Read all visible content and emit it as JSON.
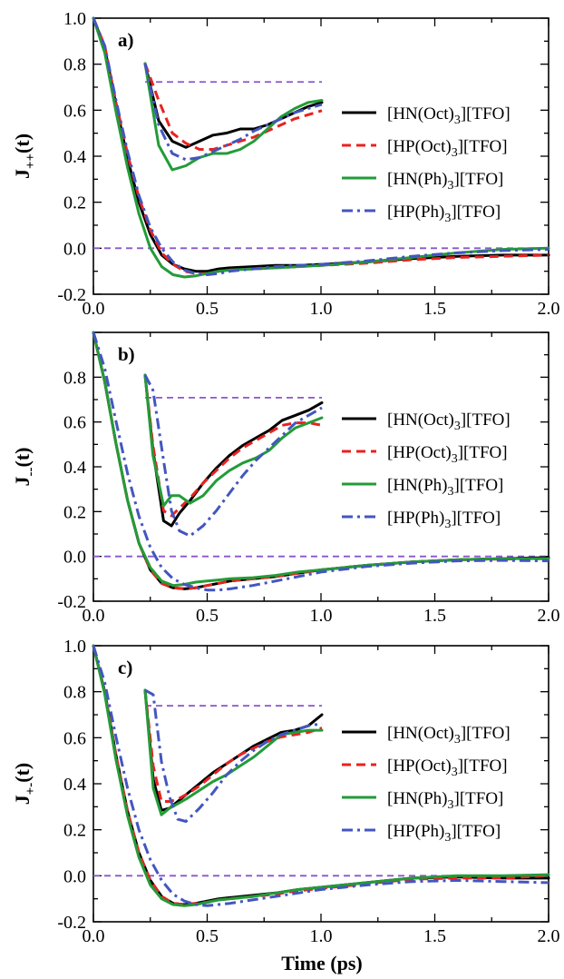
{
  "figure": {
    "xlabel": "Time (ps)"
  },
  "legend_entries": [
    "[HN(Oct)3][TFO]",
    "[HP(Oct)3][TFO]",
    "[HN(Ph)3][TFO]",
    "[HP(Ph)3][TFO]"
  ],
  "colors": {
    "HN_Oct": "#000000",
    "HP_Oct": "#e8221f",
    "HN_Ph": "#239b38",
    "HP_Ph": "#4356c0",
    "reference_line": "#8a55cc"
  },
  "chart_data": [
    {
      "type": "line",
      "panel_label": "a)",
      "ylabel": "J++(t)",
      "xlim": [
        0.0,
        2.0
      ],
      "ylim": [
        -0.2,
        1.0
      ],
      "xticks": [
        "0.0",
        "0.5",
        "1.0",
        "1.5",
        "2.0"
      ],
      "yticks": [
        "-0.2",
        "0.0",
        "0.2",
        "0.4",
        "0.6",
        "0.8",
        "1.0"
      ],
      "reference_line_y": 0.0,
      "series": [
        {
          "name": "[HN(Oct)3][TFO]",
          "style": "solid",
          "x": [
            0.0,
            0.05,
            0.1,
            0.15,
            0.2,
            0.25,
            0.3,
            0.35,
            0.4,
            0.45,
            0.5,
            0.55,
            0.6,
            0.7,
            0.8,
            0.9,
            1.0,
            1.2,
            1.4,
            1.6,
            1.8,
            2.0
          ],
          "y": [
            1.0,
            0.87,
            0.62,
            0.39,
            0.2,
            0.06,
            -0.03,
            -0.07,
            -0.09,
            -0.1,
            -0.1,
            -0.09,
            -0.085,
            -0.08,
            -0.075,
            -0.075,
            -0.07,
            -0.06,
            -0.045,
            -0.035,
            -0.03,
            -0.03
          ]
        },
        {
          "name": "[HP(Oct)3][TFO]",
          "style": "dash",
          "x": [
            0.0,
            0.05,
            0.1,
            0.15,
            0.2,
            0.25,
            0.3,
            0.35,
            0.4,
            0.45,
            0.5,
            0.55,
            0.6,
            0.7,
            0.8,
            0.9,
            1.0,
            1.2,
            1.4,
            1.6,
            1.8,
            2.0
          ],
          "y": [
            1.0,
            0.88,
            0.63,
            0.41,
            0.22,
            0.08,
            -0.02,
            -0.07,
            -0.1,
            -0.11,
            -0.11,
            -0.1,
            -0.095,
            -0.09,
            -0.085,
            -0.08,
            -0.075,
            -0.065,
            -0.05,
            -0.04,
            -0.035,
            -0.03
          ]
        },
        {
          "name": "[HN(Ph)3][TFO]",
          "style": "solid",
          "x": [
            0.0,
            0.05,
            0.1,
            0.15,
            0.2,
            0.25,
            0.3,
            0.35,
            0.4,
            0.45,
            0.5,
            0.55,
            0.6,
            0.7,
            0.8,
            0.9,
            1.0,
            1.2,
            1.4,
            1.6,
            1.8,
            2.0
          ],
          "y": [
            1.0,
            0.85,
            0.59,
            0.35,
            0.15,
            0.0,
            -0.08,
            -0.115,
            -0.125,
            -0.12,
            -0.11,
            -0.1,
            -0.095,
            -0.09,
            -0.085,
            -0.08,
            -0.075,
            -0.06,
            -0.04,
            -0.02,
            -0.005,
            0.0
          ]
        },
        {
          "name": "[HP(Ph)3][TFO]",
          "style": "dashdot",
          "x": [
            0.0,
            0.05,
            0.1,
            0.15,
            0.2,
            0.25,
            0.3,
            0.35,
            0.4,
            0.45,
            0.5,
            0.55,
            0.6,
            0.7,
            0.8,
            0.9,
            1.0,
            1.2,
            1.4,
            1.6,
            1.8,
            2.0
          ],
          "y": [
            1.0,
            0.88,
            0.64,
            0.42,
            0.23,
            0.09,
            0.0,
            -0.06,
            -0.095,
            -0.11,
            -0.115,
            -0.11,
            -0.1,
            -0.09,
            -0.08,
            -0.075,
            -0.07,
            -0.055,
            -0.035,
            -0.02,
            -0.01,
            -0.005
          ]
        }
      ],
      "inset": {
        "x": [
          0.35,
          0.4,
          0.45,
          0.5,
          0.55,
          0.6,
          0.65,
          0.7,
          0.75,
          0.8,
          0.85,
          0.9,
          0.95,
          1.0
        ],
        "reference_y": 0.71,
        "series": [
          {
            "name": "[HN(Oct)3][TFO]",
            "y": [
              0.8,
              0.52,
              0.42,
              0.39,
              0.42,
              0.45,
              0.46,
              0.48,
              0.48,
              0.5,
              0.53,
              0.56,
              0.59,
              0.61
            ]
          },
          {
            "name": "[HP(Oct)3][TFO]",
            "y": [
              0.8,
              0.62,
              0.46,
              0.41,
              0.38,
              0.38,
              0.4,
              0.42,
              0.44,
              0.47,
              0.5,
              0.53,
              0.55,
              0.57
            ]
          },
          {
            "name": "[HN(Ph)3][TFO]",
            "y": [
              0.8,
              0.4,
              0.28,
              0.3,
              0.34,
              0.36,
              0.36,
              0.38,
              0.42,
              0.48,
              0.54,
              0.58,
              0.61,
              0.62
            ]
          },
          {
            "name": "[HP(Ph)3][TFO]",
            "y": [
              0.8,
              0.5,
              0.36,
              0.33,
              0.34,
              0.37,
              0.4,
              0.43,
              0.47,
              0.5,
              0.53,
              0.56,
              0.58,
              0.6
            ]
          }
        ]
      }
    },
    {
      "type": "line",
      "panel_label": "b)",
      "ylabel": "J--(t)",
      "xlim": [
        0.0,
        2.0
      ],
      "ylim": [
        -0.2,
        1.0
      ],
      "xticks": [
        "0.0",
        "0.5",
        "1.0",
        "1.5",
        "2.0"
      ],
      "yticks": [
        "-0.2",
        "0.0",
        "0.2",
        "0.4",
        "0.6",
        "0.8"
      ],
      "reference_line_y": 0.0,
      "series": [
        {
          "name": "[HN(Oct)3][TFO]",
          "style": "solid",
          "x": [
            0.0,
            0.05,
            0.1,
            0.15,
            0.2,
            0.25,
            0.3,
            0.35,
            0.4,
            0.45,
            0.5,
            0.55,
            0.6,
            0.7,
            0.8,
            0.9,
            1.0,
            1.2,
            1.4,
            1.6,
            1.8,
            2.0
          ],
          "y": [
            1.0,
            0.78,
            0.5,
            0.25,
            0.06,
            -0.06,
            -0.12,
            -0.14,
            -0.145,
            -0.14,
            -0.13,
            -0.12,
            -0.11,
            -0.1,
            -0.09,
            -0.075,
            -0.06,
            -0.04,
            -0.025,
            -0.015,
            -0.01,
            -0.005
          ]
        },
        {
          "name": "[HP(Oct)3][TFO]",
          "style": "dash",
          "x": [
            0.0,
            0.05,
            0.1,
            0.15,
            0.2,
            0.25,
            0.3,
            0.35,
            0.4,
            0.45,
            0.5,
            0.55,
            0.6,
            0.7,
            0.8,
            0.9,
            1.0,
            1.2,
            1.4,
            1.6,
            1.8,
            2.0
          ],
          "y": [
            1.0,
            0.78,
            0.5,
            0.25,
            0.06,
            -0.06,
            -0.12,
            -0.14,
            -0.145,
            -0.14,
            -0.13,
            -0.12,
            -0.11,
            -0.1,
            -0.09,
            -0.075,
            -0.06,
            -0.04,
            -0.025,
            -0.015,
            -0.012,
            -0.01
          ]
        },
        {
          "name": "[HN(Ph)3][TFO]",
          "style": "solid",
          "x": [
            0.0,
            0.05,
            0.1,
            0.15,
            0.2,
            0.25,
            0.3,
            0.35,
            0.4,
            0.45,
            0.5,
            0.55,
            0.6,
            0.7,
            0.8,
            0.9,
            1.0,
            1.2,
            1.4,
            1.6,
            1.8,
            2.0
          ],
          "y": [
            1.0,
            0.78,
            0.5,
            0.25,
            0.06,
            -0.05,
            -0.11,
            -0.13,
            -0.125,
            -0.115,
            -0.11,
            -0.105,
            -0.1,
            -0.095,
            -0.085,
            -0.07,
            -0.06,
            -0.04,
            -0.025,
            -0.015,
            -0.01,
            -0.01
          ]
        },
        {
          "name": "[HP(Ph)3][TFO]",
          "style": "dashdot",
          "x": [
            0.0,
            0.05,
            0.1,
            0.15,
            0.2,
            0.25,
            0.3,
            0.35,
            0.4,
            0.45,
            0.5,
            0.55,
            0.6,
            0.7,
            0.8,
            0.9,
            1.0,
            1.2,
            1.4,
            1.6,
            1.8,
            2.0
          ],
          "y": [
            1.0,
            0.84,
            0.6,
            0.37,
            0.18,
            0.04,
            -0.05,
            -0.1,
            -0.125,
            -0.14,
            -0.15,
            -0.15,
            -0.145,
            -0.13,
            -0.11,
            -0.09,
            -0.07,
            -0.045,
            -0.03,
            -0.02,
            -0.018,
            -0.02
          ]
        }
      ],
      "inset": {
        "x": [
          0.33,
          0.36,
          0.4,
          0.43,
          0.46,
          0.5,
          0.55,
          0.6,
          0.65,
          0.7,
          0.75,
          0.8,
          0.85,
          0.9,
          0.95,
          1.0
        ],
        "reference_y": 0.71,
        "series": [
          {
            "name": "[HN(Oct)3][TFO]",
            "y": [
              0.8,
              0.5,
              0.22,
              0.2,
              0.25,
              0.3,
              0.37,
              0.43,
              0.48,
              0.52,
              0.55,
              0.58,
              0.62,
              0.64,
              0.66,
              0.69
            ]
          },
          {
            "name": "[HP(Oct)3][TFO]",
            "y": [
              0.8,
              0.52,
              0.26,
              0.24,
              0.27,
              0.31,
              0.37,
              0.42,
              0.47,
              0.51,
              0.54,
              0.57,
              0.6,
              0.61,
              0.61,
              0.6
            ]
          },
          {
            "name": "[HN(Ph)3][TFO]",
            "y": [
              0.8,
              0.48,
              0.28,
              0.32,
              0.32,
              0.29,
              0.32,
              0.38,
              0.42,
              0.45,
              0.47,
              0.5,
              0.55,
              0.59,
              0.61,
              0.63
            ]
          },
          {
            "name": "[HP(Ph)3][TFO]",
            "y": [
              0.8,
              0.74,
              0.46,
              0.26,
              0.18,
              0.16,
              0.2,
              0.26,
              0.33,
              0.4,
              0.46,
              0.51,
              0.56,
              0.61,
              0.64,
              0.67
            ]
          }
        ]
      }
    },
    {
      "type": "line",
      "panel_label": "c)",
      "ylabel": "J+-(t)",
      "xlim": [
        0.0,
        2.0
      ],
      "ylim": [
        -0.2,
        1.0
      ],
      "xticks": [
        "0.0",
        "0.5",
        "1.0",
        "1.5",
        "2.0"
      ],
      "yticks": [
        "-0.2",
        "0.0",
        "0.2",
        "0.4",
        "0.6",
        "0.8",
        "1.0"
      ],
      "reference_line_y": 0.0,
      "series": [
        {
          "name": "[HN(Oct)3][TFO]",
          "style": "solid",
          "x": [
            0.0,
            0.05,
            0.1,
            0.15,
            0.2,
            0.25,
            0.3,
            0.35,
            0.4,
            0.45,
            0.5,
            0.55,
            0.6,
            0.7,
            0.8,
            0.9,
            1.0,
            1.2,
            1.4,
            1.6,
            1.8,
            2.0
          ],
          "y": [
            1.0,
            0.8,
            0.52,
            0.28,
            0.1,
            -0.02,
            -0.09,
            -0.12,
            -0.125,
            -0.12,
            -0.11,
            -0.1,
            -0.095,
            -0.085,
            -0.075,
            -0.06,
            -0.05,
            -0.03,
            -0.01,
            -0.005,
            -0.01,
            -0.01
          ]
        },
        {
          "name": "[HP(Oct)3][TFO]",
          "style": "dash",
          "x": [
            0.0,
            0.05,
            0.1,
            0.15,
            0.2,
            0.25,
            0.3,
            0.35,
            0.4,
            0.45,
            0.5,
            0.55,
            0.6,
            0.7,
            0.8,
            0.9,
            1.0,
            1.2,
            1.4,
            1.6,
            1.8,
            2.0
          ],
          "y": [
            1.0,
            0.8,
            0.52,
            0.28,
            0.1,
            -0.02,
            -0.09,
            -0.12,
            -0.125,
            -0.12,
            -0.115,
            -0.105,
            -0.1,
            -0.09,
            -0.08,
            -0.065,
            -0.055,
            -0.035,
            -0.015,
            -0.01,
            -0.01,
            0.0
          ]
        },
        {
          "name": "[HN(Ph)3][TFO]",
          "style": "solid",
          "x": [
            0.0,
            0.05,
            0.1,
            0.15,
            0.2,
            0.25,
            0.3,
            0.35,
            0.4,
            0.45,
            0.5,
            0.55,
            0.6,
            0.7,
            0.8,
            0.9,
            1.0,
            1.2,
            1.4,
            1.6,
            1.8,
            2.0
          ],
          "y": [
            1.0,
            0.79,
            0.5,
            0.26,
            0.08,
            -0.04,
            -0.1,
            -0.125,
            -0.13,
            -0.125,
            -0.115,
            -0.105,
            -0.1,
            -0.09,
            -0.075,
            -0.06,
            -0.05,
            -0.03,
            -0.01,
            0.0,
            0.0,
            0.005
          ]
        },
        {
          "name": "[HP(Ph)3][TFO]",
          "style": "dashdot",
          "x": [
            0.0,
            0.05,
            0.1,
            0.15,
            0.2,
            0.25,
            0.3,
            0.35,
            0.4,
            0.45,
            0.5,
            0.55,
            0.6,
            0.7,
            0.8,
            0.9,
            1.0,
            1.2,
            1.4,
            1.6,
            1.8,
            2.0
          ],
          "y": [
            1.0,
            0.84,
            0.6,
            0.38,
            0.2,
            0.07,
            -0.02,
            -0.08,
            -0.11,
            -0.125,
            -0.13,
            -0.125,
            -0.12,
            -0.105,
            -0.09,
            -0.075,
            -0.06,
            -0.04,
            -0.025,
            -0.02,
            -0.025,
            -0.03
          ]
        }
      ],
      "inset": {
        "x": [
          0.35,
          0.38,
          0.41,
          0.44,
          0.47,
          0.5,
          0.55,
          0.6,
          0.65,
          0.7,
          0.75,
          0.8,
          0.85,
          0.9,
          0.95,
          1.0
        ],
        "reference_y": 0.73,
        "series": [
          {
            "name": "[HN(Oct)3][TFO]",
            "y": [
              0.8,
              0.4,
              0.26,
              0.27,
              0.3,
              0.33,
              0.38,
              0.43,
              0.47,
              0.51,
              0.55,
              0.58,
              0.61,
              0.62,
              0.64,
              0.69
            ]
          },
          {
            "name": "[HP(Oct)3][TFO]",
            "y": [
              0.8,
              0.46,
              0.3,
              0.3,
              0.31,
              0.33,
              0.37,
              0.42,
              0.47,
              0.51,
              0.54,
              0.57,
              0.59,
              0.6,
              0.61,
              0.63
            ]
          },
          {
            "name": "[HN(Ph)3][TFO]",
            "y": [
              0.8,
              0.36,
              0.24,
              0.27,
              0.29,
              0.31,
              0.35,
              0.39,
              0.42,
              0.46,
              0.5,
              0.55,
              0.6,
              0.61,
              0.62,
              0.62
            ]
          },
          {
            "name": "[HP(Ph)3][TFO]",
            "y": [
              0.8,
              0.78,
              0.48,
              0.32,
              0.22,
              0.21,
              0.27,
              0.34,
              0.42,
              0.48,
              0.53,
              0.57,
              0.6,
              0.62,
              0.64,
              0.65
            ]
          }
        ]
      }
    }
  ]
}
